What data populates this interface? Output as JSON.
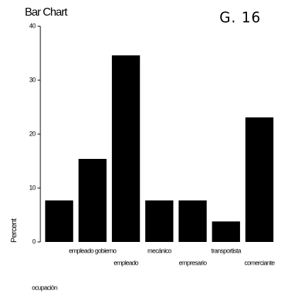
{
  "chart_data": {
    "type": "bar",
    "title": "Bar Chart",
    "annotation": "G. 16",
    "x_label": "ocupación",
    "y_label": "Percent",
    "categories": [
      null,
      "empleado gobierno",
      "empleado",
      "mecánico",
      "empresario",
      "transportista",
      "comerciante"
    ],
    "values": [
      7.7,
      15.4,
      34.6,
      7.7,
      7.7,
      3.8,
      23.1
    ],
    "color": "#000000",
    "ylim": [
      0,
      40
    ],
    "yticks": [
      0,
      10,
      20,
      30,
      40
    ],
    "grid": false
  }
}
